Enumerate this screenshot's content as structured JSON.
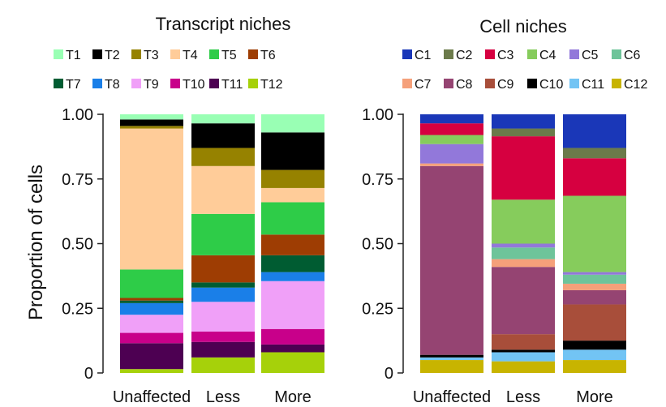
{
  "ylabel": "Proportion of cells",
  "chart_data": [
    {
      "type": "bar",
      "stacked": true,
      "title": "Transcript niches",
      "ylabel": "Proportion of cells",
      "ylim": [
        0,
        1
      ],
      "yticks": [
        "0",
        "0.25",
        "0.50",
        "0.75",
        "1.00"
      ],
      "categories": [
        "Unaffected",
        "Less",
        "More"
      ],
      "legend": [
        {
          "name": "T1",
          "color": "#99ffb4"
        },
        {
          "name": "T2",
          "color": "#000000"
        },
        {
          "name": "T3",
          "color": "#968200"
        },
        {
          "name": "T4",
          "color": "#ffcc99"
        },
        {
          "name": "T5",
          "color": "#2ecc48"
        },
        {
          "name": "T6",
          "color": "#9e3d03"
        },
        {
          "name": "T7",
          "color": "#005c32"
        },
        {
          "name": "T8",
          "color": "#1a7fe8"
        },
        {
          "name": "T9",
          "color": "#f0a0f8"
        },
        {
          "name": "T10",
          "color": "#c8008a"
        },
        {
          "name": "T11",
          "color": "#4d0052"
        },
        {
          "name": "T12",
          "color": "#a6d10a"
        }
      ],
      "stack_order": [
        "T12",
        "T11",
        "T10",
        "T9",
        "T8",
        "T7",
        "T6",
        "T5",
        "T4",
        "T3",
        "T2",
        "T1"
      ],
      "series": [
        {
          "name": "T12",
          "values": [
            0.015,
            0.06,
            0.08
          ]
        },
        {
          "name": "T11",
          "values": [
            0.1,
            0.06,
            0.03
          ]
        },
        {
          "name": "T10",
          "values": [
            0.04,
            0.04,
            0.06
          ]
        },
        {
          "name": "T9",
          "values": [
            0.07,
            0.115,
            0.185
          ]
        },
        {
          "name": "T8",
          "values": [
            0.045,
            0.055,
            0.035
          ]
        },
        {
          "name": "T7",
          "values": [
            0.01,
            0.02,
            0.065
          ]
        },
        {
          "name": "T6",
          "values": [
            0.01,
            0.105,
            0.08
          ]
        },
        {
          "name": "T5",
          "values": [
            0.11,
            0.16,
            0.125
          ]
        },
        {
          "name": "T4",
          "values": [
            0.545,
            0.185,
            0.055
          ]
        },
        {
          "name": "T3",
          "values": [
            0.01,
            0.07,
            0.07
          ]
        },
        {
          "name": "T2",
          "values": [
            0.025,
            0.095,
            0.145
          ]
        },
        {
          "name": "T1",
          "values": [
            0.02,
            0.035,
            0.07
          ]
        }
      ]
    },
    {
      "type": "bar",
      "stacked": true,
      "title": "Cell niches",
      "ylabel": "Proportion of cells",
      "ylim": [
        0,
        1
      ],
      "yticks": [
        "0",
        "0.25",
        "0.50",
        "0.75",
        "1.00"
      ],
      "categories": [
        "Unaffected",
        "Less",
        "More"
      ],
      "legend": [
        {
          "name": "C1",
          "color": "#1a37b8"
        },
        {
          "name": "C2",
          "color": "#6b7a4a"
        },
        {
          "name": "C3",
          "color": "#d60040"
        },
        {
          "name": "C4",
          "color": "#86cc5c"
        },
        {
          "name": "C5",
          "color": "#9278da"
        },
        {
          "name": "C6",
          "color": "#6ec49a"
        },
        {
          "name": "C7",
          "color": "#f5a07a"
        },
        {
          "name": "C8",
          "color": "#954472"
        },
        {
          "name": "C9",
          "color": "#a84e3a"
        },
        {
          "name": "C10",
          "color": "#000000"
        },
        {
          "name": "C11",
          "color": "#72c4f4"
        },
        {
          "name": "C12",
          "color": "#c8b400"
        }
      ],
      "stack_order": [
        "C12",
        "C11",
        "C10",
        "C9",
        "C8",
        "C7",
        "C6",
        "C5",
        "C4",
        "C3",
        "C2",
        "C1"
      ],
      "series": [
        {
          "name": "C12",
          "values": [
            0.05,
            0.045,
            0.05
          ]
        },
        {
          "name": "C11",
          "values": [
            0.01,
            0.035,
            0.04
          ]
        },
        {
          "name": "C10",
          "values": [
            0.01,
            0.01,
            0.035
          ]
        },
        {
          "name": "C9",
          "values": [
            0.0,
            0.06,
            0.14
          ]
        },
        {
          "name": "C8",
          "values": [
            0.73,
            0.26,
            0.055
          ]
        },
        {
          "name": "C7",
          "values": [
            0.01,
            0.03,
            0.025
          ]
        },
        {
          "name": "C6",
          "values": [
            0.0,
            0.045,
            0.035
          ]
        },
        {
          "name": "C5",
          "values": [
            0.075,
            0.015,
            0.01
          ]
        },
        {
          "name": "C4",
          "values": [
            0.035,
            0.17,
            0.295
          ]
        },
        {
          "name": "C3",
          "values": [
            0.045,
            0.245,
            0.145
          ]
        },
        {
          "name": "C2",
          "values": [
            0.0,
            0.03,
            0.04
          ]
        },
        {
          "name": "C1",
          "values": [
            0.035,
            0.055,
            0.13
          ]
        }
      ]
    }
  ]
}
